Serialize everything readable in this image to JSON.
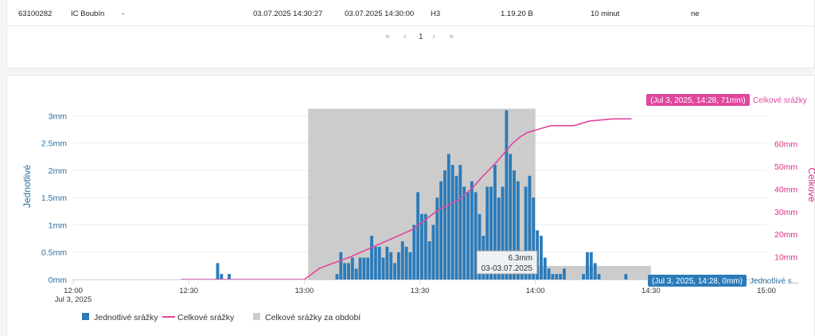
{
  "table": {
    "row": {
      "id": "63100282",
      "name": "IC Boubín",
      "dash": "-",
      "time_from": "03.07.2025 14:30:27",
      "time_to": "03.07.2025 14:30:00",
      "code": "H3",
      "version": "1.19.20 B",
      "interval": "10 minut",
      "flag": "ne"
    }
  },
  "pagination": {
    "first": "«",
    "prev": "‹",
    "current": "1",
    "next": "›",
    "last": "»"
  },
  "colors": {
    "bars": "#2b7bb9",
    "line": "#e0479e",
    "area": "#cccccc",
    "left_axis_text": "#2b6f9e",
    "right_axis_text": "#d63384"
  },
  "chart_data": {
    "type": "bar",
    "x_ticks": [
      "12:00",
      "12:30",
      "13:00",
      "13:30",
      "14:00",
      "14:30",
      "15:00"
    ],
    "x_date_label": "Jul 3, 2025",
    "left_axis": {
      "label": "Jednotlivé",
      "ticks": [
        "0mm",
        "0.5mm",
        "1mm",
        "1.5mm",
        "2mm",
        "2.5mm",
        "3mm"
      ],
      "range": [
        0,
        3.4
      ]
    },
    "right_axis": {
      "label": "Celkové",
      "ticks": [
        "10mm",
        "20mm",
        "30mm",
        "40mm",
        "50mm",
        "60mm"
      ],
      "range": [
        0,
        82
      ]
    },
    "bars_minutes_from_noon": {
      "x": [
        37.5,
        38.5,
        40.5,
        68.5,
        69.5,
        70.5,
        71.5,
        72.5,
        73.5,
        74.5,
        75.5,
        76.5,
        77.5,
        78.5,
        79.5,
        80.5,
        81.5,
        82.5,
        83.5,
        84.5,
        85.5,
        86.5,
        87.5,
        88.5,
        89.5,
        90.5,
        91.5,
        92.5,
        93.5,
        94.5,
        95.5,
        96.5,
        97.5,
        98.5,
        99.5,
        100.5,
        101.5,
        102.5,
        103.5,
        104.5,
        105.5,
        106.5,
        107.5,
        108.5,
        109.5,
        110.5,
        111.5,
        112.5,
        113.5,
        114.5,
        115.5,
        116.5,
        117.5,
        118.5,
        119.5,
        120.5,
        121.5,
        122.5,
        123.5,
        124.5,
        125.5,
        126.5,
        127.5,
        132.5,
        133.5,
        134.5,
        135.5,
        136.5,
        143.5
      ],
      "values": [
        0.3,
        0.1,
        0.1,
        0.1,
        0.5,
        0.3,
        0.3,
        0.4,
        0.2,
        0.4,
        0.4,
        0.4,
        0.8,
        0.6,
        0.6,
        0.4,
        0.6,
        0.5,
        0.3,
        0.5,
        0.7,
        0.6,
        0.5,
        1.0,
        1.6,
        1.2,
        1.2,
        0.7,
        1.0,
        1.5,
        1.8,
        2.0,
        2.3,
        2.1,
        1.9,
        2.1,
        1.7,
        1.6,
        1.8,
        1.6,
        1.2,
        0.8,
        1.7,
        1.7,
        2.1,
        1.5,
        1.7,
        3.1,
        2.3,
        2.0,
        1.8,
        0.5,
        1.7,
        1.9,
        1.5,
        0.9,
        0.8,
        0.4,
        0.2,
        0.1,
        0.1,
        0.1,
        0.2,
        0.1,
        0.5,
        0.5,
        0.3,
        0.1,
        0.1
      ]
    },
    "cumulative_line_minutes_from_noon": {
      "x": [
        28,
        60,
        64,
        72,
        80,
        88,
        95,
        100,
        104,
        106,
        110,
        114,
        116,
        118,
        120,
        122,
        124,
        130,
        134,
        140,
        145
      ],
      "values": [
        0,
        0,
        5,
        10,
        16,
        22,
        31,
        35,
        41,
        45,
        52,
        60,
        63,
        65,
        66,
        67,
        68,
        68,
        70,
        71,
        71
      ]
    },
    "period_area": [
      {
        "from_minutes": 61,
        "to_minutes": 120,
        "value": 75.5
      },
      {
        "from_minutes": 120,
        "to_minutes": 150,
        "value": 6
      }
    ],
    "tooltips": {
      "bar": {
        "value": "6.3mm",
        "date": "03-03.07.2025"
      },
      "line_end": "(Jul 3, 2025, 14:28, 71mm)",
      "bar_end": "(Jul 3, 2025, 14:28, 0mm)"
    },
    "series_names": {
      "line": "Celkové srážky",
      "bars_short": "Jednotlivé s..."
    },
    "legend": [
      {
        "name": "Jednotlivé srážky",
        "color": "#2b7bb9",
        "kind": "square"
      },
      {
        "name": "Celkové srážky",
        "color": "#e0479e",
        "kind": "line"
      },
      {
        "name": "Celkové srážky za období",
        "color": "#cccccc",
        "kind": "square"
      }
    ]
  }
}
